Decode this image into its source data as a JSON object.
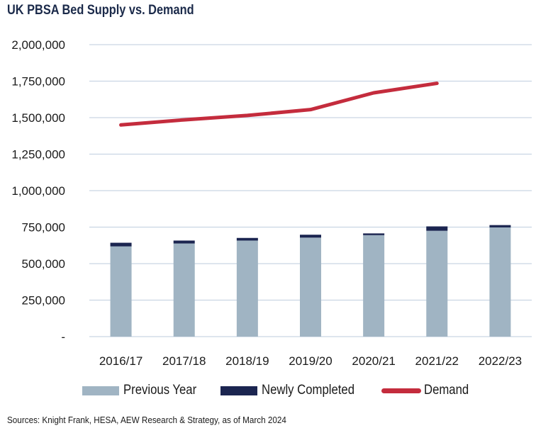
{
  "chart_data": {
    "type": "bar",
    "title": "UK PBSA Bed Supply vs. Demand",
    "categories": [
      "2016/17",
      "2017/18",
      "2018/19",
      "2019/20",
      "2020/21",
      "2021/22",
      "2022/23"
    ],
    "series": [
      {
        "name": "Previous Year",
        "kind": "stacked-bar",
        "color": "#a0b4c3",
        "values": [
          618000,
          638000,
          658000,
          678000,
          695000,
          725000,
          748000
        ]
      },
      {
        "name": "Newly Completed",
        "kind": "stacked-bar",
        "color": "#1b2550",
        "values": [
          25000,
          20000,
          18000,
          20000,
          12000,
          30000,
          16000
        ]
      },
      {
        "name": "Demand",
        "kind": "line",
        "color": "#c42c3d",
        "values": [
          1450000,
          1485000,
          1515000,
          1555000,
          1670000,
          1735000,
          null
        ]
      }
    ],
    "y_ticks": [
      "-",
      "250,000",
      "500,000",
      "750,000",
      "1,000,000",
      "1,250,000",
      "1,500,000",
      "1,750,000",
      "2,000,000"
    ],
    "ylim": [
      0,
      2000000
    ],
    "ystep": 250000,
    "grid": true,
    "legend_position": "bottom",
    "xlabel": "",
    "ylabel": ""
  },
  "source_text": "Sources: Knight Frank, HESA, AEW Research & Strategy, as of March 2024"
}
